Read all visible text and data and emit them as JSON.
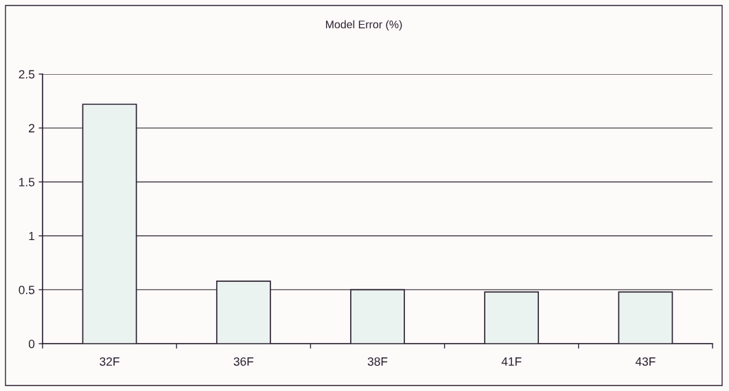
{
  "chart_data": {
    "type": "bar",
    "title": "Model Error (%)",
    "categories": [
      "32F",
      "36F",
      "38F",
      "41F",
      "43F"
    ],
    "values": [
      2.22,
      0.58,
      0.5,
      0.48,
      0.48
    ],
    "color": "#ebf3f1",
    "ylim": [
      0,
      2.5
    ],
    "yticks": [
      0,
      0.5,
      1,
      1.5,
      2,
      2.5
    ],
    "grid": "y"
  }
}
